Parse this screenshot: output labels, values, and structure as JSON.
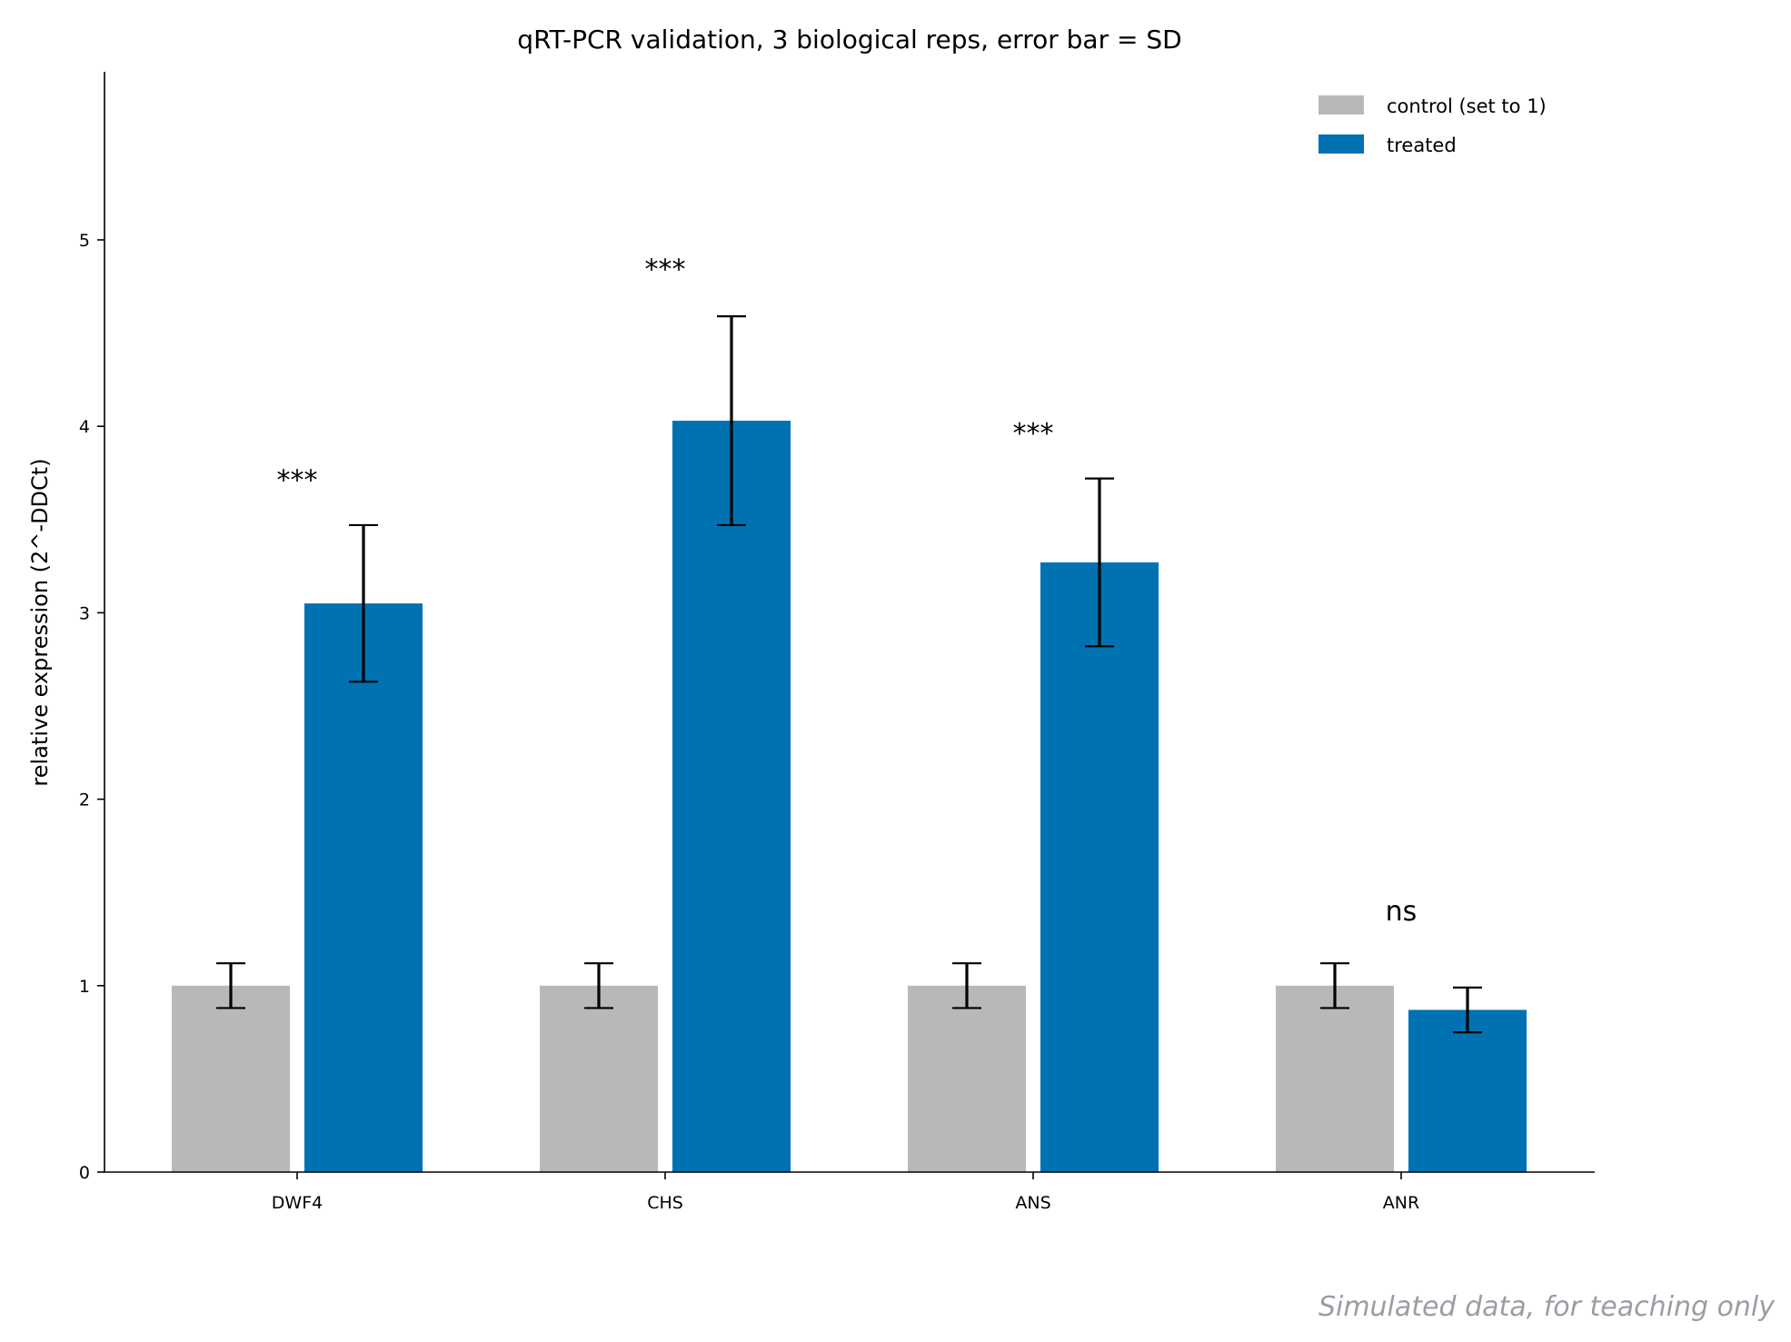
{
  "chart_data": {
    "type": "bar",
    "title": "qRT-PCR validation, 3 biological reps, error bar = SD",
    "xlabel": "",
    "ylabel": "relative expression (2^-DDCt)",
    "ylim": [
      0,
      5.9
    ],
    "yticks": [
      0,
      1,
      2,
      3,
      4,
      5
    ],
    "grid": false,
    "legend": "top-right",
    "categories": [
      "DWF4",
      "CHS",
      "ANS",
      "ANR"
    ],
    "series": [
      {
        "name": "control (set to 1)",
        "color": "#b8b8b8",
        "values": [
          1.0,
          1.0,
          1.0,
          1.0
        ],
        "errors": [
          0.12,
          0.12,
          0.12,
          0.12
        ]
      },
      {
        "name": "treated",
        "color": "#0072b2",
        "values": [
          3.05,
          4.03,
          3.27,
          0.87
        ],
        "errors": [
          0.42,
          0.56,
          0.45,
          0.12
        ]
      }
    ],
    "significance": [
      "***",
      "***",
      "***",
      "ns"
    ],
    "significance_y": [
      3.75,
      4.88,
      4.0,
      1.35
    ]
  },
  "watermark": "Simulated data, for teaching only"
}
